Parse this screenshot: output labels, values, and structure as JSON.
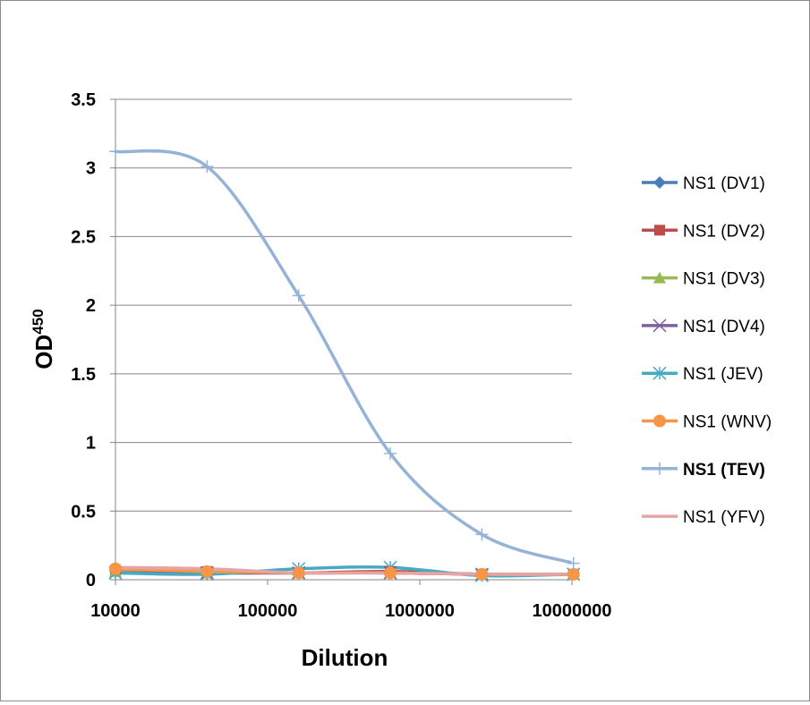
{
  "chart_data": {
    "type": "line",
    "xlabel": "Dilution",
    "ylabel": "OD",
    "ylabel_sup": "450",
    "x_scale": "log",
    "xlim": [
      10000,
      10000000
    ],
    "ylim": [
      0,
      3.5
    ],
    "x_ticks": [
      "10000",
      "100000",
      "1000000",
      "10000000"
    ],
    "y_ticks": [
      "0",
      "0.5",
      "1",
      "1.5",
      "2",
      "2.5",
      "3",
      "3.5"
    ],
    "grid": "horizontal",
    "legend_position": "right",
    "x": [
      10000,
      40000,
      160000,
      640000,
      2560000,
      10240000
    ],
    "series": [
      {
        "name": "NS1 (DV1)",
        "color": "#4a7ebb",
        "marker": "diamond",
        "values": [
          0.06,
          0.05,
          0.05,
          0.05,
          0.04,
          0.04
        ]
      },
      {
        "name": "NS1 (DV2)",
        "color": "#be4b48",
        "marker": "square",
        "values": [
          0.07,
          0.06,
          0.05,
          0.06,
          0.04,
          0.04
        ]
      },
      {
        "name": "NS1 (DV3)",
        "color": "#98b954",
        "marker": "triangle",
        "values": [
          0.06,
          0.05,
          0.05,
          0.05,
          0.04,
          0.04
        ]
      },
      {
        "name": "NS1 (DV4)",
        "color": "#7d60a0",
        "marker": "x",
        "values": [
          0.05,
          0.05,
          0.05,
          0.05,
          0.04,
          0.04
        ]
      },
      {
        "name": "NS1 (JEV)",
        "color": "#46aac5",
        "marker": "star",
        "values": [
          0.05,
          0.04,
          0.08,
          0.09,
          0.03,
          0.04
        ]
      },
      {
        "name": "NS1 (WNV)",
        "color": "#f79646",
        "marker": "circle",
        "values": [
          0.08,
          0.06,
          0.05,
          0.05,
          0.04,
          0.04
        ]
      },
      {
        "name": "NS1 (TEV)",
        "color": "#95b3d7",
        "marker": "plus",
        "bold": true,
        "values": [
          3.12,
          3.01,
          2.07,
          0.92,
          0.33,
          0.12
        ]
      },
      {
        "name": "NS1 (YFV)",
        "color": "#e6a5a4",
        "marker": "none",
        "values": [
          0.09,
          0.08,
          0.05,
          0.05,
          0.04,
          0.04
        ]
      }
    ]
  }
}
